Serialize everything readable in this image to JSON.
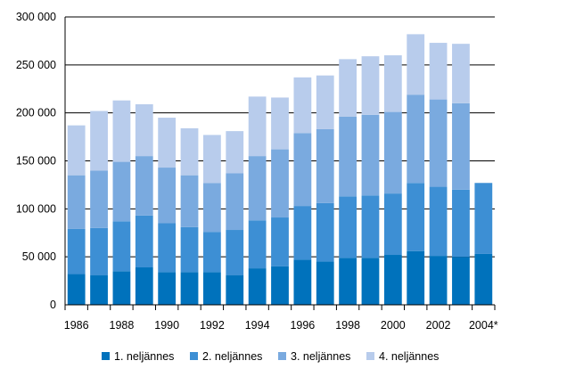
{
  "chart_data": {
    "type": "bar",
    "stacked": true,
    "title": "",
    "xlabel": "",
    "ylabel": "",
    "ylim": [
      0,
      300000
    ],
    "yticks": [
      0,
      50000,
      100000,
      150000,
      200000,
      250000,
      300000
    ],
    "ytick_labels": [
      "0",
      "50 000",
      "100 000",
      "150 000",
      "200 000",
      "250 000",
      "300 000"
    ],
    "grid": "horizontal",
    "legend_position": "bottom",
    "categories": [
      "1986",
      "1987",
      "1988",
      "1989",
      "1990",
      "1991",
      "1992",
      "1993",
      "1994",
      "1995",
      "1996",
      "1997",
      "1998",
      "1999",
      "2000",
      "2001",
      "2002",
      "2003",
      "2004*"
    ],
    "xtick_labels": [
      "1986",
      "",
      "1988",
      "",
      "1990",
      "",
      "1992",
      "",
      "1994",
      "",
      "1996",
      "",
      "1998",
      "",
      "2000",
      "",
      "2002",
      "",
      "2004*"
    ],
    "series": [
      {
        "name": "1. neljännes",
        "color": "#0072bc",
        "values": [
          32000,
          31000,
          35000,
          39000,
          34000,
          34000,
          34000,
          31000,
          38000,
          40000,
          47000,
          45000,
          49000,
          49000,
          52000,
          56000,
          51000,
          50000,
          53000
        ]
      },
      {
        "name": "2. neljännes",
        "color": "#3d8fd4",
        "values": [
          47000,
          49000,
          52000,
          54000,
          51000,
          47000,
          42000,
          47000,
          50000,
          51000,
          56000,
          61000,
          64000,
          65000,
          64000,
          71000,
          72000,
          70000,
          74000
        ]
      },
      {
        "name": "3. neljännes",
        "color": "#7aaadf",
        "values": [
          56000,
          60000,
          62000,
          62000,
          58000,
          54000,
          51000,
          59000,
          67000,
          71000,
          76000,
          77000,
          83000,
          84000,
          85000,
          92000,
          91000,
          90000,
          0
        ]
      },
      {
        "name": "4. neljännes",
        "color": "#b8ccec",
        "values": [
          52000,
          62000,
          64000,
          54000,
          52000,
          49000,
          50000,
          44000,
          62000,
          54000,
          58000,
          56000,
          60000,
          61000,
          59000,
          63000,
          59000,
          62000,
          0
        ]
      }
    ]
  }
}
